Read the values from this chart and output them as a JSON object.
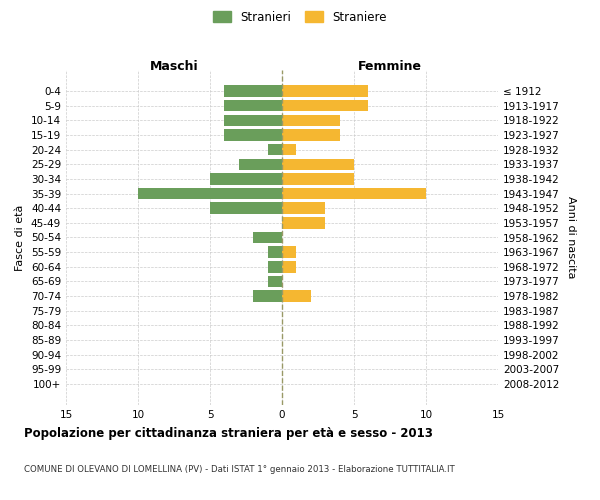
{
  "age_groups": [
    "0-4",
    "5-9",
    "10-14",
    "15-19",
    "20-24",
    "25-29",
    "30-34",
    "35-39",
    "40-44",
    "45-49",
    "50-54",
    "55-59",
    "60-64",
    "65-69",
    "70-74",
    "75-79",
    "80-84",
    "85-89",
    "90-94",
    "95-99",
    "100+"
  ],
  "birth_years": [
    "2008-2012",
    "2003-2007",
    "1998-2002",
    "1993-1997",
    "1988-1992",
    "1983-1987",
    "1978-1982",
    "1973-1977",
    "1968-1972",
    "1963-1967",
    "1958-1962",
    "1953-1957",
    "1948-1952",
    "1943-1947",
    "1938-1942",
    "1933-1937",
    "1928-1932",
    "1923-1927",
    "1918-1922",
    "1913-1917",
    "≤ 1912"
  ],
  "males": [
    4,
    4,
    4,
    4,
    1,
    3,
    5,
    10,
    5,
    0,
    2,
    1,
    1,
    1,
    2,
    0,
    0,
    0,
    0,
    0,
    0
  ],
  "females": [
    6,
    6,
    4,
    4,
    1,
    5,
    5,
    10,
    3,
    3,
    0,
    1,
    1,
    0,
    2,
    0,
    0,
    0,
    0,
    0,
    0
  ],
  "male_color": "#6a9e5b",
  "female_color": "#f5b731",
  "grid_color": "#cccccc",
  "center_line_color": "#999966",
  "title": "Popolazione per cittadinanza straniera per età e sesso - 2013",
  "subtitle": "COMUNE DI OLEVANO DI LOMELLINA (PV) - Dati ISTAT 1° gennaio 2013 - Elaborazione TUTTITALIA.IT",
  "xlabel_left": "Maschi",
  "xlabel_right": "Femmine",
  "ylabel_left": "Fasce di età",
  "ylabel_right": "Anni di nascita",
  "legend_male": "Stranieri",
  "legend_female": "Straniere",
  "xlim": 15,
  "bg_color": "#ffffff"
}
